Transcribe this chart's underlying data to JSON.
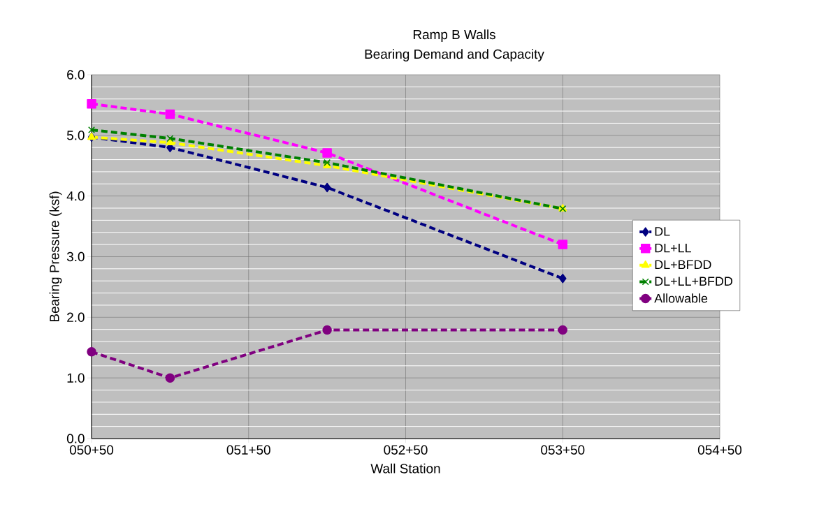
{
  "chart_data": {
    "type": "line",
    "title": "Ramp B Walls",
    "subtitle": "Bearing Demand and Capacity",
    "xlabel": "Wall Station",
    "ylabel": "Bearing Pressure (ksf)",
    "categories": [
      "050+50",
      null,
      "051+50",
      null,
      "052+50",
      null,
      "053+50",
      null,
      "054+50"
    ],
    "series": [
      {
        "name": "DL",
        "color": "#000080",
        "marker": "diamond",
        "values": [
          4.97,
          4.8,
          null,
          4.14,
          null,
          null,
          2.64,
          null,
          null
        ]
      },
      {
        "name": "DL+LL",
        "color": "#ff00ff",
        "marker": "square",
        "values": [
          5.52,
          5.35,
          null,
          4.71,
          null,
          null,
          3.2,
          null,
          null
        ]
      },
      {
        "name": "DL+BFDD",
        "color": "#ffff00",
        "marker": "triangle",
        "values": [
          4.97,
          4.88,
          null,
          4.5,
          null,
          null,
          3.79,
          null,
          null
        ]
      },
      {
        "name": "DL+LL+BFDD",
        "color": "#008000",
        "marker": "cross",
        "values": [
          5.09,
          4.95,
          null,
          4.55,
          null,
          null,
          3.79,
          null,
          null
        ]
      },
      {
        "name": "Allowable",
        "color": "#800080",
        "marker": "circle",
        "values": [
          1.43,
          1.0,
          null,
          1.79,
          null,
          null,
          1.79,
          null,
          null
        ]
      }
    ],
    "ylim": [
      0,
      6
    ],
    "yticks": [
      {
        "value": 0,
        "label": "0.0"
      },
      {
        "value": 1,
        "label": "1.0"
      },
      {
        "value": 2,
        "label": "2.0"
      },
      {
        "value": 3,
        "label": "3.0"
      },
      {
        "value": 4,
        "label": "4.0"
      },
      {
        "value": 5,
        "label": "5.0"
      },
      {
        "value": 6,
        "label": "6.0"
      }
    ],
    "grid": true,
    "legend": "right",
    "line_style": "dashed"
  }
}
